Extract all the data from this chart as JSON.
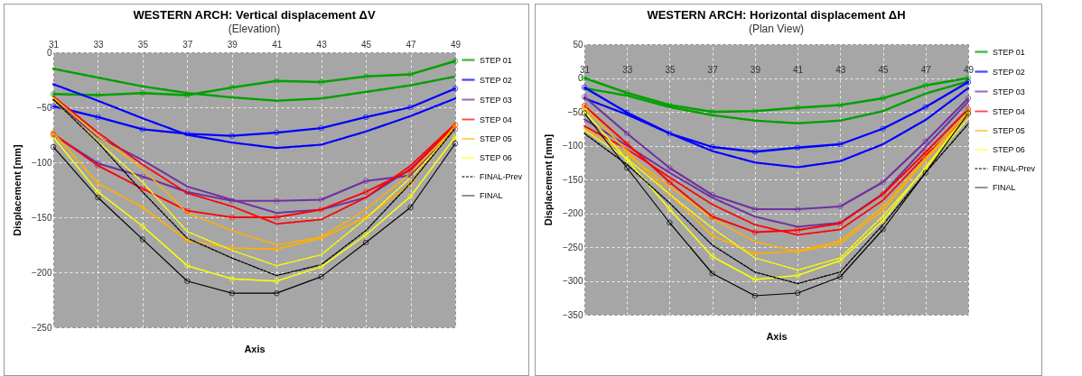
{
  "chart_data": [
    {
      "type": "line",
      "title": "WESTERN ARCH:  Vertical displacement ΔV",
      "subtitle": "(Elevation)",
      "xlabel": "Axis",
      "ylabel": "Displacement [mm]",
      "categories": [
        "31",
        "33",
        "35",
        "37",
        "39",
        "41",
        "43",
        "45",
        "47",
        "49"
      ],
      "ylim": [
        -250,
        0
      ],
      "yticks": [
        -250,
        -200,
        -150,
        -100,
        -50,
        0
      ],
      "grid": true,
      "legend": "right",
      "series": [
        {
          "name": "STEP 01",
          "color": "#00a000",
          "marker": "circle",
          "line_style": "solid",
          "values": [
            -38,
            -39,
            -37,
            -39,
            -32,
            -26,
            -27,
            -22,
            -20,
            -8
          ]
        },
        {
          "color": "#00a000",
          "marker": "none",
          "line_style": "dashed",
          "values": [
            -15,
            -23,
            -31,
            -37,
            -41,
            -44,
            -42,
            -36,
            -30,
            -22
          ]
        },
        {
          "name": "STEP 02",
          "color": "#0000ff",
          "marker": "circle",
          "line_style": "solid",
          "values": [
            -49,
            -59,
            -70,
            -74,
            -76,
            -73,
            -69,
            -59,
            -50,
            -33
          ]
        },
        {
          "color": "#0000ff",
          "marker": "none",
          "line_style": "dashed",
          "values": [
            -29,
            -44,
            -60,
            -75,
            -82,
            -87,
            -84,
            -72,
            -58,
            -42
          ]
        },
        {
          "name": "STEP 03",
          "color": "#7030a0",
          "marker": "circle",
          "line_style": "solid",
          "values": [
            -75,
            -101,
            -113,
            -127,
            -135,
            -135,
            -134,
            -117,
            -112,
            -70
          ]
        },
        {
          "color": "#7030a0",
          "marker": "none",
          "line_style": "dashed",
          "values": [
            -43,
            -77,
            -98,
            -122,
            -134,
            -146,
            -143,
            -132,
            -106,
            -66
          ]
        },
        {
          "name": "STEP 04",
          "color": "#ff0000",
          "marker": "circle",
          "line_style": "solid",
          "values": [
            -74,
            -103,
            -124,
            -144,
            -150,
            -150,
            -143,
            -127,
            -107,
            -66
          ]
        },
        {
          "color": "#ff0000",
          "marker": "none",
          "line_style": "dashed",
          "values": [
            -40,
            -73,
            -102,
            -128,
            -140,
            -156,
            -152,
            -132,
            -103,
            -65
          ]
        },
        {
          "name": "STEP 05",
          "color": "#ffb000",
          "marker": "circle",
          "line_style": "solid",
          "values": [
            -73,
            -119,
            -141,
            -171,
            -178,
            -179,
            -169,
            -150,
            -120,
            -66
          ]
        },
        {
          "color": "#ffb000",
          "marker": "none",
          "line_style": "dashed",
          "values": [
            -41,
            -76,
            -106,
            -146,
            -162,
            -175,
            -168,
            -143,
            -110,
            -68
          ]
        },
        {
          "name": "STEP 06",
          "color": "#ffff00",
          "marker": "circle",
          "line_style": "solid",
          "values": [
            -77,
            -127,
            -158,
            -194,
            -206,
            -208,
            -195,
            -166,
            -131,
            -77
          ]
        },
        {
          "color": "#ffff00",
          "marker": "none",
          "line_style": "dashed",
          "values": [
            -44,
            -81,
            -118,
            -163,
            -180,
            -194,
            -184,
            -151,
            -114,
            -70
          ]
        },
        {
          "name": "FINAL-Prev",
          "color": "#000000",
          "marker": "none",
          "line_style": "dashed",
          "values": [
            -43,
            -82,
            -127,
            -169,
            -187,
            -203,
            -193,
            -162,
            -119,
            -69
          ]
        },
        {
          "name": "FINAL",
          "color": "#000000",
          "marker": "circle",
          "line_style": "solid",
          "values": [
            -86,
            -132,
            -170,
            -208,
            -219,
            -219,
            -204,
            -173,
            -141,
            -83
          ]
        }
      ]
    },
    {
      "type": "line",
      "title": "WESTERN ARCH:  Horizontal displacement ΔH",
      "subtitle": "(Plan View)",
      "xlabel": "Axis",
      "ylabel": "Displacement [mm]",
      "categories": [
        "31",
        "33",
        "35",
        "37",
        "39",
        "41",
        "43",
        "45",
        "47",
        "49"
      ],
      "ylim": [
        -350,
        50
      ],
      "yticks": [
        -350,
        -300,
        -250,
        -200,
        -150,
        -100,
        -50,
        0,
        50
      ],
      "grid": true,
      "legend": "right",
      "series": [
        {
          "name": "STEP 01",
          "color": "#00a000",
          "marker": "circle",
          "line_style": "solid",
          "values": [
            0,
            -22,
            -40,
            -50,
            -49,
            -44,
            -40,
            -30,
            -11,
            0
          ]
        },
        {
          "color": "#00a000",
          "marker": "none",
          "line_style": "dashed",
          "values": [
            -15,
            -26,
            -43,
            -55,
            -63,
            -67,
            -63,
            -49,
            -23,
            -5
          ]
        },
        {
          "name": "STEP 02",
          "color": "#0000ff",
          "marker": "circle",
          "line_style": "solid",
          "values": [
            -14,
            -51,
            -82,
            -102,
            -109,
            -103,
            -98,
            -75,
            -43,
            -6
          ]
        },
        {
          "color": "#0000ff",
          "marker": "none",
          "line_style": "dashed",
          "values": [
            -30,
            -54,
            -82,
            -108,
            -125,
            -132,
            -123,
            -98,
            -62,
            -15
          ]
        },
        {
          "name": "STEP 03",
          "color": "#7030a0",
          "marker": "circle",
          "line_style": "solid",
          "values": [
            -28,
            -82,
            -133,
            -173,
            -194,
            -194,
            -190,
            -154,
            -94,
            -30
          ]
        },
        {
          "color": "#7030a0",
          "marker": "none",
          "line_style": "dashed",
          "values": [
            -61,
            -100,
            -140,
            -177,
            -205,
            -220,
            -214,
            -171,
            -102,
            -35
          ]
        },
        {
          "name": "STEP 04",
          "color": "#ff0000",
          "marker": "circle",
          "line_style": "solid",
          "values": [
            -41,
            -97,
            -154,
            -205,
            -228,
            -225,
            -215,
            -172,
            -110,
            -46
          ]
        },
        {
          "color": "#ff0000",
          "marker": "none",
          "line_style": "dashed",
          "values": [
            -71,
            -105,
            -147,
            -187,
            -217,
            -232,
            -224,
            -181,
            -115,
            -55
          ]
        },
        {
          "name": "STEP 05",
          "color": "#ffb000",
          "marker": "circle",
          "line_style": "solid",
          "values": [
            -43,
            -108,
            -172,
            -233,
            -260,
            -256,
            -241,
            -191,
            -119,
            -50
          ]
        },
        {
          "color": "#ffb000",
          "marker": "none",
          "line_style": "dashed",
          "values": [
            -74,
            -113,
            -160,
            -208,
            -242,
            -257,
            -245,
            -196,
            -121,
            -55
          ]
        },
        {
          "name": "STEP 06",
          "color": "#ffff00",
          "marker": "circle",
          "line_style": "solid",
          "values": [
            -49,
            -121,
            -194,
            -264,
            -298,
            -292,
            -270,
            -211,
            -132,
            -52
          ]
        },
        {
          "color": "#ffff00",
          "marker": "none",
          "line_style": "dashed",
          "values": [
            -77,
            -119,
            -172,
            -222,
            -266,
            -284,
            -266,
            -204,
            -134,
            -60
          ]
        },
        {
          "name": "FINAL-Prev",
          "color": "#000000",
          "marker": "none",
          "line_style": "dashed",
          "values": [
            -82,
            -128,
            -185,
            -247,
            -287,
            -304,
            -287,
            -217,
            -140,
            -68
          ]
        },
        {
          "name": "FINAL",
          "color": "#000000",
          "marker": "circle",
          "line_style": "solid",
          "values": [
            -52,
            -133,
            -214,
            -289,
            -322,
            -318,
            -294,
            -224,
            -140,
            -52
          ]
        }
      ]
    }
  ]
}
